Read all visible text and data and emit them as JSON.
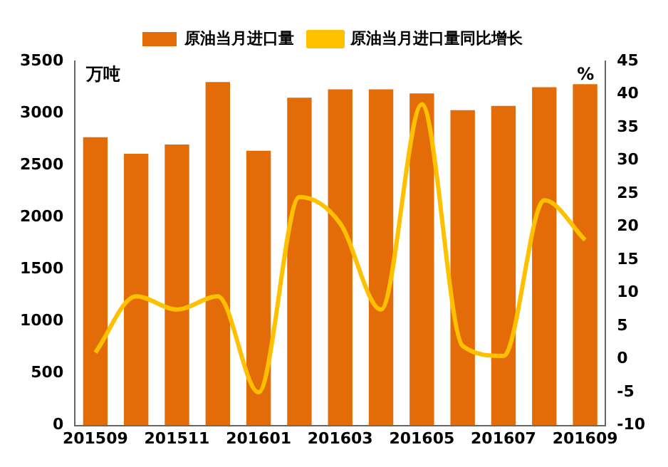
{
  "chart_data": {
    "type": "bar",
    "categories": [
      "201509",
      null,
      "201511",
      null,
      "201601",
      null,
      "201603",
      null,
      "201605",
      null,
      "201607",
      null,
      "201609"
    ],
    "series": [
      {
        "name": "原油当月进口量",
        "color": "#e36c09",
        "values": [
          2770,
          2610,
          2700,
          3300,
          2640,
          3150,
          3230,
          3230,
          3190,
          3030,
          3070,
          3250,
          3280
        ]
      },
      {
        "name": "原油当月进口量同比增长",
        "type": "line",
        "axis": "y2",
        "color": "#ffc000",
        "values": [
          1,
          9.5,
          7.5,
          9.5,
          -5,
          24.5,
          20.5,
          7.5,
          38.5,
          2,
          0.5,
          24,
          18
        ]
      }
    ],
    "ylabel": "万吨",
    "y2label": "%",
    "ylim": [
      0,
      3500
    ],
    "yticks": [
      0,
      500,
      1000,
      1500,
      2000,
      2500,
      3000,
      3500
    ],
    "y2lim": [
      -10,
      45
    ],
    "y2ticks": [
      -10,
      -5,
      0,
      5,
      10,
      15,
      20,
      25,
      30,
      35,
      40,
      45
    ],
    "legend": "top",
    "grid": false,
    "marker": "none",
    "line_style": "solid"
  }
}
